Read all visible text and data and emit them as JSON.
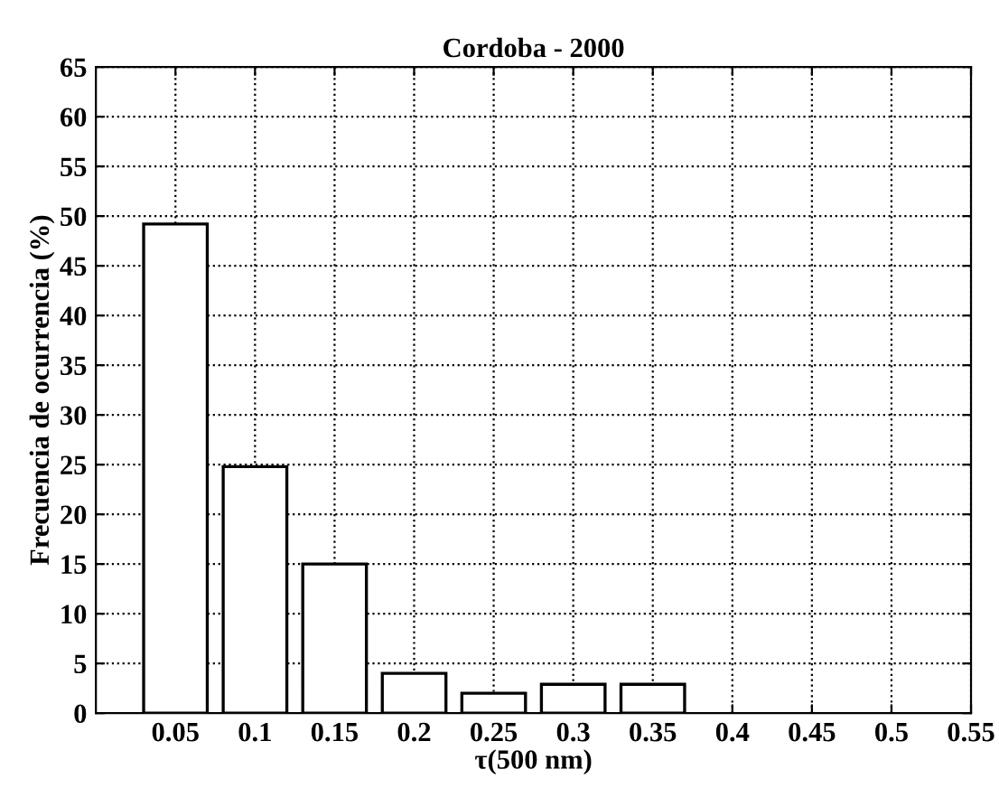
{
  "chart_data": {
    "type": "bar",
    "title": "Cordoba - 2000",
    "xlabel": "τ(500 nm)",
    "ylabel": "Frecuencia de ocurrencia (%)",
    "x": [
      0.05,
      0.1,
      0.15,
      0.2,
      0.25,
      0.3,
      0.35
    ],
    "values": [
      49.2,
      24.8,
      15,
      4,
      2,
      2.9,
      2.9
    ],
    "color": "#ffffff",
    "xlim": [
      0,
      0.55
    ],
    "xticks": [
      0.05,
      0.1,
      0.15,
      0.2,
      0.25,
      0.3,
      0.35,
      0.4,
      0.45,
      0.5,
      0.55
    ],
    "ylim": [
      0,
      65
    ],
    "yticks": [
      0,
      5,
      10,
      15,
      20,
      25,
      30,
      35,
      40,
      45,
      50,
      55,
      60,
      65
    ],
    "grid": true,
    "line_style": "dotted"
  }
}
